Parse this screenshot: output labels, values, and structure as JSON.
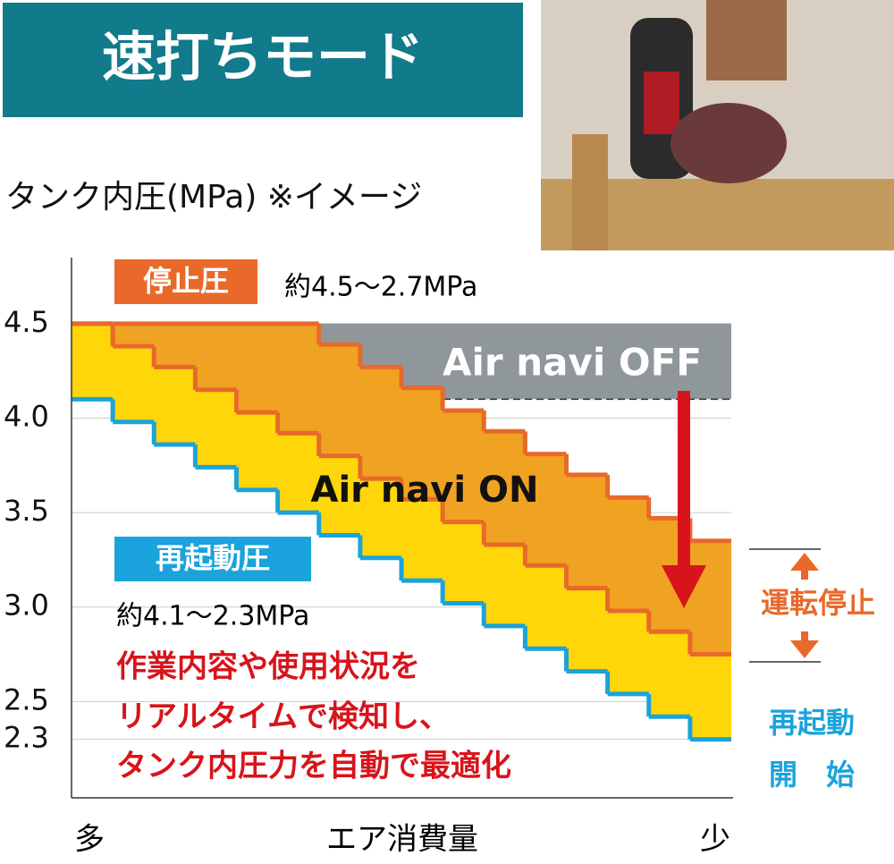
{
  "chart_data": {
    "type": "step",
    "title": "速打ちモード",
    "y_axis_label": "タンク内圧(MPa) ※イメージ",
    "x_axis_label": "エア消費量",
    "x_start_label": "多",
    "x_end_label": "少",
    "categories": [
      null,
      null,
      null,
      null,
      null,
      null,
      null,
      null,
      null,
      null,
      null,
      null,
      null,
      null,
      null,
      null
    ],
    "series": [
      {
        "color": "#e8692a",
        "values": [
          4.5,
          4.5,
          4.5,
          4.5,
          4.5,
          4.5,
          4.39,
          4.27,
          4.16,
          4.04,
          3.93,
          3.81,
          3.7,
          3.58,
          3.47,
          3.35
        ]
      },
      {
        "color": "#e8692a",
        "values": [
          4.5,
          4.38,
          4.27,
          4.15,
          4.03,
          3.92,
          3.8,
          3.68,
          3.57,
          3.45,
          3.33,
          3.22,
          3.1,
          2.98,
          2.87,
          2.75
        ]
      },
      {
        "color": "#1aa3dc",
        "values": [
          4.1,
          3.98,
          3.86,
          3.74,
          3.62,
          3.5,
          3.38,
          3.26,
          3.14,
          3.02,
          2.9,
          2.78,
          2.66,
          2.54,
          2.42,
          2.3
        ]
      }
    ],
    "ylim": [
      2.0,
      4.84
    ],
    "yticks": [
      2.3,
      2.5,
      {
        "value": 3,
        "label": "3.0"
      },
      3.5,
      {
        "value": 4,
        "label": "4.0"
      },
      4.5
    ],
    "off_label": "Air navi OFF",
    "on_label": "Air navi ON",
    "stop_label": "停止圧",
    "stop_range": "約4.5〜2.7MPa",
    "restart_label": "再起動圧",
    "restart_range": "約4.1〜2.3MPa",
    "message": [
      "作業内容や使用状況を",
      "リアルタイムで検知し、",
      "タンク内圧力を自動で最適化"
    ],
    "stop_band_label": "運転停止",
    "restart_band_label": [
      "再起動",
      "開　始"
    ]
  }
}
